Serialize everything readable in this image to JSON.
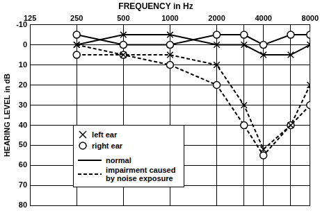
{
  "chart_data": {
    "type": "line",
    "title": "FREQUENCY in Hz",
    "y_label": "HEARING LEVEL in dB",
    "x": [
      250,
      500,
      1000,
      2000,
      3000,
      4000,
      6000,
      8000
    ],
    "xlim": [
      125,
      8000
    ],
    "xticks": [
      125,
      250,
      500,
      1000,
      2000,
      4000,
      8000
    ],
    "ylim": [
      80,
      -10
    ],
    "yticks": [
      -10,
      0,
      10,
      20,
      30,
      40,
      50,
      60,
      70,
      80
    ],
    "log": "x",
    "grid": true,
    "legend": "lower left",
    "series": [
      {
        "name": "left ear",
        "group": "normal",
        "color": "#000000",
        "marker": "cross",
        "line_style": "solid",
        "values": [
          0,
          -5,
          -5,
          0,
          0,
          5,
          5,
          0
        ]
      },
      {
        "name": "right ear",
        "group": "normal",
        "color": "#000000",
        "marker": "circle",
        "line_style": "solid",
        "values": [
          -5,
          0,
          0,
          -5,
          -5,
          0,
          -5,
          -5
        ]
      },
      {
        "name": "left ear",
        "group": "impairment caused by noise exposure",
        "color": "#000000",
        "marker": "cross",
        "line_style": "dashed",
        "values": [
          0,
          5,
          5,
          10,
          30,
          52,
          40,
          20
        ]
      },
      {
        "name": "right ear",
        "group": "impairment caused by noise exposure",
        "color": "#000000",
        "marker": "circle",
        "line_style": "dashed",
        "values": [
          5,
          5,
          10,
          20,
          40,
          55,
          40,
          30
        ]
      }
    ]
  }
}
